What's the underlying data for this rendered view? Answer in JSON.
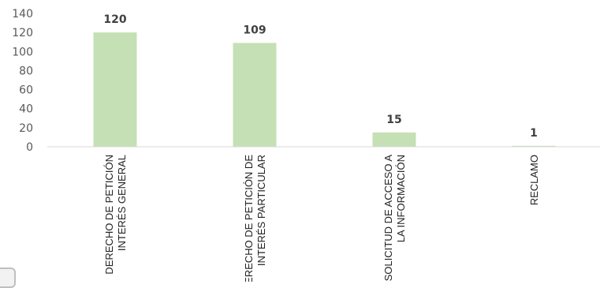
{
  "chart_data": {
    "type": "bar",
    "categories": [
      [
        "DERECHO DE PETICIÓN",
        "INTERÉS GENERAL"
      ],
      [
        "DERECHO DE PETICIÓN DE",
        "INTERÉS PARTICULAR"
      ],
      [
        "SOLICITUD DE ACCESO A",
        "LA INFORMACIÓN"
      ],
      [
        "RECLAMO"
      ]
    ],
    "values": [
      120,
      109,
      15,
      1
    ],
    "ylim": [
      0,
      140
    ],
    "yticks": [
      0,
      20,
      40,
      60,
      80,
      100,
      120,
      140
    ],
    "grid": false,
    "legend": "none",
    "bar_color": "#c5e0b4",
    "axis_color": "#d9d9d9"
  }
}
